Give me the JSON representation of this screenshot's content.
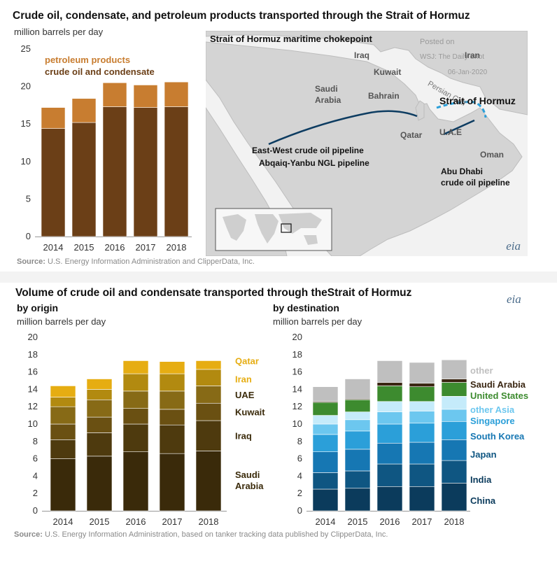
{
  "top": {
    "title": "Crude oil, condensate, and petroleum products transported through the Strait of Hormuz",
    "unit": "million barrels per day",
    "legend_products": "petroleum products",
    "legend_crude": "crude oil and condensate",
    "source_label": "Source:",
    "source_text": " U.S. Energy Information Administration and ClipperData, Inc.",
    "eia": "eia"
  },
  "map": {
    "title": "Strait of Hormuz maritime chokepoint",
    "watermark_1": "Posted on",
    "watermark_2": "WSJ: The Daily Shot",
    "watermark_3": "06-Jan-2020",
    "iraq": "Iraq",
    "iran": "Iran",
    "kuwait": "Kuwait",
    "saudi": "Saudi\nArabia",
    "saudi_1": "Saudi",
    "saudi_2": "Arabia",
    "bahrain": "Bahrain",
    "persian_gulf": "Persian Gulf",
    "qatar": "Qatar",
    "uae": "U.A.E",
    "oman": "Oman",
    "strait": "Strait of Hormuz",
    "ew_pipeline": "East-West crude oil pipeline",
    "ngl_pipeline": "Abqaiq-Yanbu NGL pipeline",
    "abu_dhabi_1": "Abu Dhabi",
    "abu_dhabi_2": "crude oil pipeline"
  },
  "bottom": {
    "title": "Volume of crude oil and condensate transported through theStrait of Hormuz",
    "left_sub": "by origin",
    "right_sub": "by destination",
    "unit": "million barrels per day",
    "source_label": "Source:",
    "source_text": " U.S. Energy Information Administration, based on tanker tracking data published by ClipperData, Inc.",
    "eia": "eia"
  },
  "colors": {
    "crude": "#6b3f17",
    "products": "#c87d30",
    "origin": [
      "#3a2a0a",
      "#4e3a0e",
      "#6a5012",
      "#876a16",
      "#b28a10",
      "#e6ad12"
    ],
    "destination": [
      "#0b3b5c",
      "#0f5682",
      "#1677b3",
      "#2b9fd9",
      "#6cc7ef",
      "#c5ebfa",
      "#3d8b2f",
      "#3a2612",
      "#bfbfbf"
    ]
  },
  "chart_data": [
    {
      "type": "bar",
      "stacked": true,
      "categories": [
        "2014",
        "2015",
        "2016",
        "2017",
        "2018"
      ],
      "series": [
        {
          "name": "crude oil and condensate",
          "values": [
            14.4,
            15.2,
            17.3,
            17.2,
            17.3
          ]
        },
        {
          "name": "petroleum products",
          "values": [
            2.8,
            3.2,
            3.2,
            3.0,
            3.3
          ]
        }
      ],
      "ylim": [
        0,
        25
      ],
      "yticks": [
        0,
        5,
        10,
        15,
        20,
        25
      ],
      "ylabel": "million barrels per day",
      "grid": false
    },
    {
      "type": "bar",
      "stacked": true,
      "categories": [
        "2014",
        "2015",
        "2016",
        "2017",
        "2018"
      ],
      "series": [
        {
          "name": "Saudi Arabia",
          "values": [
            6.0,
            6.3,
            6.8,
            6.6,
            6.9
          ]
        },
        {
          "name": "Iraq",
          "values": [
            2.2,
            2.7,
            3.2,
            3.3,
            3.5
          ]
        },
        {
          "name": "Kuwait",
          "values": [
            1.8,
            1.8,
            1.8,
            1.8,
            2.0
          ]
        },
        {
          "name": "UAE",
          "values": [
            2.0,
            2.0,
            2.0,
            2.1,
            2.0
          ]
        },
        {
          "name": "Iran",
          "values": [
            1.1,
            1.2,
            2.0,
            2.0,
            1.9
          ]
        },
        {
          "name": "Qatar",
          "values": [
            1.3,
            1.2,
            1.5,
            1.4,
            1.0
          ]
        }
      ],
      "ylim": [
        0,
        20
      ],
      "yticks": [
        0,
        2,
        4,
        6,
        8,
        10,
        12,
        14,
        16,
        18,
        20
      ],
      "ylabel": "million barrels per day",
      "grid": false
    },
    {
      "type": "bar",
      "stacked": true,
      "categories": [
        "2014",
        "2015",
        "2016",
        "2017",
        "2018"
      ],
      "series": [
        {
          "name": "China",
          "values": [
            2.5,
            2.6,
            2.8,
            2.8,
            3.2
          ]
        },
        {
          "name": "India",
          "values": [
            1.9,
            2.0,
            2.6,
            2.6,
            2.6
          ]
        },
        {
          "name": "Japan",
          "values": [
            2.4,
            2.5,
            2.4,
            2.5,
            2.4
          ]
        },
        {
          "name": "South Korea",
          "values": [
            2.0,
            2.1,
            2.2,
            2.2,
            2.1
          ]
        },
        {
          "name": "Singapore",
          "values": [
            1.2,
            1.3,
            1.4,
            1.4,
            1.4
          ]
        },
        {
          "name": "other Asia",
          "values": [
            1.0,
            0.9,
            1.2,
            1.1,
            1.5
          ]
        },
        {
          "name": "United States",
          "values": [
            1.5,
            1.4,
            1.8,
            1.7,
            1.6
          ]
        },
        {
          "name": "Saudi Arabia",
          "values": [
            0.1,
            0.1,
            0.4,
            0.4,
            0.4
          ]
        },
        {
          "name": "other",
          "values": [
            1.7,
            2.3,
            2.5,
            2.4,
            2.2
          ]
        }
      ],
      "ylim": [
        0,
        20
      ],
      "yticks": [
        0,
        2,
        4,
        6,
        8,
        10,
        12,
        14,
        16,
        18,
        20
      ],
      "ylabel": "million barrels per day",
      "grid": false
    }
  ]
}
